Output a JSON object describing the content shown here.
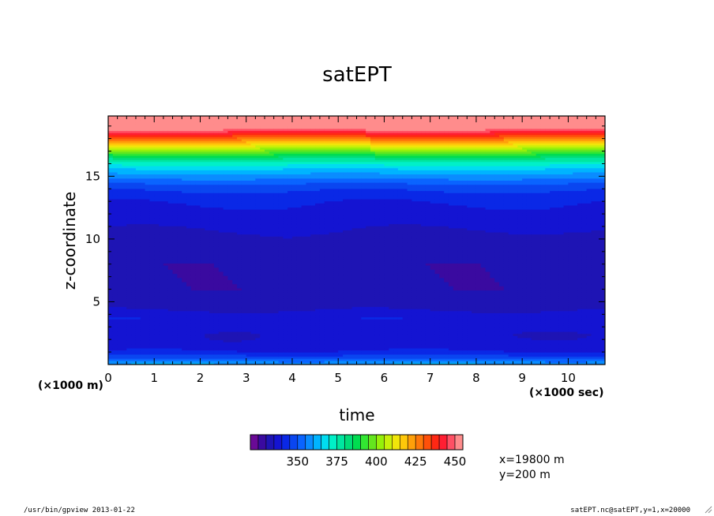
{
  "chart_data": {
    "type": "heatmap",
    "title": "satEPT",
    "xlabel": "time",
    "ylabel": "z-coordinate",
    "x_unit": "(×1000 sec)",
    "y_unit": "(×1000 m)",
    "xlim": [
      0,
      10.8
    ],
    "ylim": [
      0,
      19.8
    ],
    "x_ticks": [
      0,
      1,
      2,
      3,
      4,
      5,
      6,
      7,
      8,
      9,
      10
    ],
    "x_ticklabels": [
      "0",
      "1",
      "2",
      "3",
      "4",
      "5",
      "6",
      "7",
      "8",
      "9",
      "10"
    ],
    "y_ticks": [
      5,
      10,
      15
    ],
    "y_ticklabels": [
      "5",
      "10",
      "15"
    ],
    "colorbar": {
      "levels": [
        320,
        325,
        330,
        335,
        340,
        345,
        350,
        355,
        360,
        365,
        370,
        375,
        380,
        385,
        390,
        395,
        400,
        405,
        410,
        415,
        420,
        425,
        430,
        435,
        440,
        445,
        450,
        455
      ],
      "ticks": [
        350,
        375,
        400,
        425,
        450
      ],
      "ticklabels": [
        "350",
        "375",
        "400",
        "425",
        "450"
      ],
      "colors": [
        "#6a0a96",
        "#3a0aa0",
        "#1e14b4",
        "#1414d2",
        "#0a28e6",
        "#0a46f0",
        "#0a64ff",
        "#0a8cff",
        "#00b4ff",
        "#00dcf0",
        "#00f0c8",
        "#00e6a0",
        "#00dc78",
        "#00dc50",
        "#32e632",
        "#64e61e",
        "#96f00a",
        "#c8f00a",
        "#f0e60a",
        "#ffc80a",
        "#ffa00a",
        "#ff780a",
        "#ff500a",
        "#ff2814",
        "#ff1e32",
        "#ff5064",
        "#ff8c8c"
      ]
    },
    "profile_z": [
      0,
      0.3,
      0.6,
      1.0,
      1.5,
      2.0,
      3.0,
      3.7,
      4.5,
      6,
      8,
      9.5,
      10.3,
      11.5,
      12.4,
      13.2,
      14.0,
      14.6,
      15.2,
      15.8,
      16.4,
      16.8,
      17.2,
      17.6,
      18.0,
      18.4,
      18.8,
      19.0,
      19.8
    ],
    "profile_value": [
      361,
      355,
      348,
      341,
      337,
      338,
      337,
      339,
      334,
      331,
      331,
      333,
      334,
      337,
      339,
      341,
      346,
      352,
      360,
      368,
      380,
      392,
      404,
      416,
      428,
      440,
      452,
      453,
      453
    ],
    "annotations": [
      "x=19800 m",
      "y=200 m"
    ]
  },
  "footer": {
    "left": "/usr/bin/gpview  2013-01-22",
    "right": "satEPT.nc@satEPT,y=1,x=20000"
  }
}
